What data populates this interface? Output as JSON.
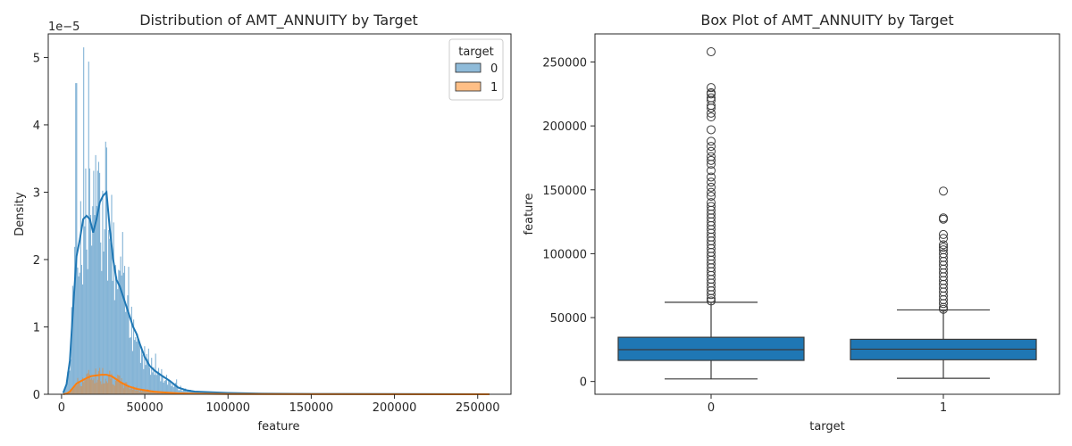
{
  "chart_data": [
    {
      "type": "histogram",
      "title": "Distribution of AMT_ANNUITY by Target",
      "xlabel": "feature",
      "ylabel": "Density",
      "y_offset_label": "1e−5",
      "xlim": [
        -8000,
        270000
      ],
      "ylim": [
        0,
        5.35
      ],
      "xticks": [
        0,
        50000,
        100000,
        150000,
        200000,
        250000
      ],
      "yticks": [
        0,
        1,
        2,
        3,
        4,
        5
      ],
      "legend": {
        "title": "target",
        "position": "top-right",
        "entries": [
          "0",
          "1"
        ]
      },
      "colors": {
        "0": "#1f77b4",
        "1": "#ff7f0e"
      },
      "kde": [
        {
          "name": "0",
          "x": [
            1000,
            3000,
            5000,
            7000,
            9000,
            11000,
            13000,
            15000,
            17000,
            19000,
            21000,
            23000,
            25000,
            27000,
            29000,
            31000,
            33000,
            35000,
            37000,
            39000,
            41000,
            43000,
            45000,
            47000,
            50000,
            53000,
            56000,
            60000,
            65000,
            70000,
            75000,
            80000,
            90000,
            100000,
            120000,
            150000,
            200000,
            257000
          ],
          "y": [
            0.02,
            0.15,
            0.5,
            1.3,
            2.05,
            2.3,
            2.6,
            2.65,
            2.6,
            2.4,
            2.6,
            2.85,
            2.95,
            3.0,
            2.45,
            2.0,
            1.7,
            1.6,
            1.45,
            1.3,
            1.15,
            1.0,
            0.9,
            0.75,
            0.55,
            0.42,
            0.35,
            0.28,
            0.2,
            0.1,
            0.06,
            0.04,
            0.03,
            0.02,
            0.01,
            0.005,
            0.003,
            0.0
          ]
        },
        {
          "name": "1",
          "x": [
            1000,
            3000,
            5000,
            7000,
            9000,
            12000,
            15000,
            18000,
            21000,
            24000,
            27000,
            30000,
            33000,
            36000,
            40000,
            45000,
            50000,
            55000,
            60000,
            70000,
            80000,
            100000,
            150000,
            257000
          ],
          "y": [
            0.0,
            0.01,
            0.04,
            0.1,
            0.16,
            0.2,
            0.24,
            0.27,
            0.28,
            0.29,
            0.29,
            0.27,
            0.22,
            0.17,
            0.12,
            0.08,
            0.06,
            0.04,
            0.03,
            0.015,
            0.008,
            0.004,
            0.001,
            0.0
          ]
        }
      ]
    },
    {
      "type": "box",
      "title": "Box Plot of AMT_ANNUITY by Target",
      "xlabel": "target",
      "ylabel": "feature",
      "categories": [
        "0",
        "1"
      ],
      "ylim": [
        -10000,
        272000
      ],
      "yticks": [
        0,
        50000,
        100000,
        150000,
        200000,
        250000
      ],
      "color": "#1f77b4",
      "boxes": [
        {
          "name": "0",
          "whisker_low": 2000,
          "q1": 16500,
          "median": 24900,
          "q3": 34600,
          "whisker_high": 62000,
          "outliers": [
            258000,
            230000,
            226000,
            225000,
            222000,
            220000,
            216000,
            214000,
            210000,
            207000,
            197000,
            188000,
            184000,
            180000,
            176000,
            173000,
            170000,
            165000,
            160000,
            156000,
            152000,
            148000,
            145000,
            140000,
            137000,
            134000,
            131000,
            128000,
            125000,
            122000,
            119000,
            116000,
            113000,
            110000,
            107000,
            104000,
            101000,
            98000,
            95000,
            92000,
            89000,
            86000,
            83000,
            80000,
            77000,
            74000,
            71000,
            68000,
            65000,
            63000
          ]
        },
        {
          "name": "1",
          "whisker_low": 2500,
          "q1": 17000,
          "median": 25300,
          "q3": 33000,
          "whisker_high": 56000,
          "outliers": [
            149000,
            128000,
            127000,
            115000,
            112000,
            107000,
            105000,
            103000,
            100000,
            97000,
            94000,
            91000,
            88000,
            85000,
            82000,
            79000,
            76000,
            73000,
            70000,
            67000,
            64000,
            61000,
            58000,
            56500
          ]
        }
      ]
    }
  ]
}
